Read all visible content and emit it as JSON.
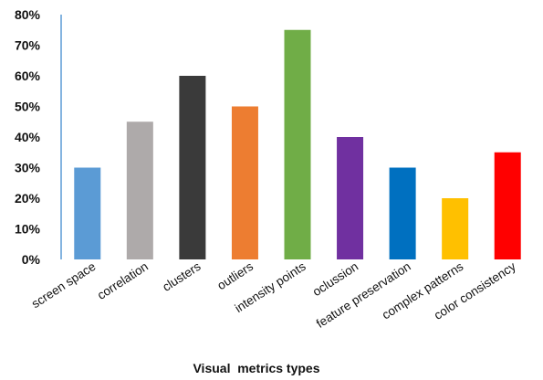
{
  "chart_data": {
    "type": "bar",
    "title": "",
    "xlabel": "Visual  metrics types",
    "ylabel": "",
    "ylim": [
      0,
      80
    ],
    "y_ticks": [
      0,
      10,
      20,
      30,
      40,
      50,
      60,
      70,
      80
    ],
    "y_tick_labels": [
      "0%",
      "10%",
      "20%",
      "30%",
      "40%",
      "50%",
      "60%",
      "70%",
      "80%"
    ],
    "grid": false,
    "legend": "none",
    "axis_color": "#5b9bd5",
    "categories": [
      "screen space",
      "correlation",
      "clusters",
      "outliers",
      "intensity points",
      "oclussion",
      "feature preservation",
      "complex patterns",
      "color consistency"
    ],
    "values": [
      30,
      45,
      60,
      50,
      75,
      40,
      30,
      20,
      35
    ],
    "colors": [
      "#5b9bd5",
      "#aeaaaa",
      "#3a3a3a",
      "#ed7d31",
      "#70ad47",
      "#7030a0",
      "#0070c0",
      "#ffc000",
      "#ff0000"
    ]
  }
}
